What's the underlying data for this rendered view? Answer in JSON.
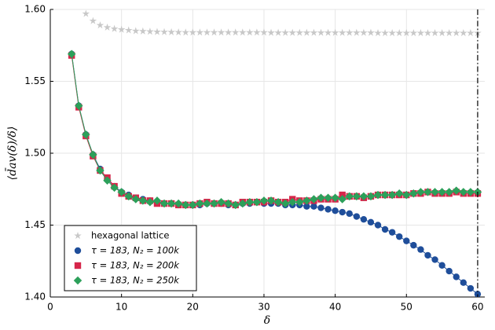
{
  "chart_data": {
    "type": "scatter",
    "xlabel": "δ",
    "ylabel": "⟨d̄av(δ)/δ⟩",
    "xlim": [
      0,
      61
    ],
    "ylim": [
      1.4,
      1.6
    ],
    "xticks": [
      0,
      10,
      20,
      30,
      40,
      50,
      60
    ],
    "yticks": [
      {
        "value": 1.4,
        "label": "1.40"
      },
      {
        "value": 1.45,
        "label": "1.45"
      },
      {
        "value": 1.5,
        "label": "1.50"
      },
      {
        "value": 1.55,
        "label": "1.55"
      },
      {
        "value": 1.6,
        "label": "1.60"
      }
    ],
    "grid": true,
    "legend": "bottom-left",
    "vline": 60,
    "x": [
      3,
      4,
      5,
      6,
      7,
      8,
      9,
      10,
      11,
      12,
      13,
      14,
      15,
      16,
      17,
      18,
      19,
      20,
      21,
      22,
      23,
      24,
      25,
      26,
      27,
      28,
      29,
      30,
      31,
      32,
      33,
      34,
      35,
      36,
      37,
      38,
      39,
      40,
      41,
      42,
      43,
      44,
      45,
      46,
      47,
      48,
      49,
      50,
      51,
      52,
      53,
      54,
      55,
      56,
      57,
      58,
      59,
      60
    ],
    "series": [
      {
        "name": "hexagonal lattice",
        "color": "#c8c8c8",
        "marker": "star",
        "line": false,
        "values": [
          null,
          null,
          1.597,
          1.592,
          1.589,
          1.5875,
          1.5865,
          1.586,
          1.5855,
          1.585,
          1.5848,
          1.5846,
          1.5844,
          1.5843,
          1.5842,
          1.5841,
          1.584,
          1.584,
          1.584,
          1.584,
          1.584,
          1.584,
          1.584,
          1.584,
          1.584,
          1.584,
          1.584,
          1.584,
          1.5838,
          1.5838,
          1.5838,
          1.5838,
          1.5838,
          1.5838,
          1.5838,
          1.5838,
          1.5838,
          1.5838,
          1.5838,
          1.5838,
          1.5838,
          1.5838,
          1.5838,
          1.5836,
          1.5836,
          1.5836,
          1.5836,
          1.5836,
          1.5836,
          1.5836,
          1.5836,
          1.5836,
          1.5836,
          1.5836,
          1.5836,
          1.5836,
          1.5836,
          1.5836
        ]
      },
      {
        "name": "τ = 183, N₂ = 100k",
        "color": "#1f4e9a",
        "marker": "circle",
        "line": true,
        "values": [
          1.569,
          1.533,
          1.513,
          1.499,
          1.489,
          1.482,
          1.477,
          1.473,
          1.471,
          1.469,
          1.468,
          1.467,
          1.466,
          1.465,
          1.465,
          1.464,
          1.464,
          1.464,
          1.464,
          1.465,
          1.465,
          1.465,
          1.464,
          1.464,
          1.465,
          1.465,
          1.466,
          1.465,
          1.465,
          1.465,
          1.464,
          1.464,
          1.464,
          1.463,
          1.463,
          1.462,
          1.461,
          1.46,
          1.459,
          1.458,
          1.456,
          1.454,
          1.452,
          1.45,
          1.447,
          1.445,
          1.442,
          1.439,
          1.436,
          1.433,
          1.429,
          1.426,
          1.422,
          1.418,
          1.414,
          1.41,
          1.406,
          1.402
        ]
      },
      {
        "name": "τ = 183, N₂ = 200k",
        "color": "#d6264a",
        "marker": "square",
        "line": true,
        "values": [
          1.568,
          1.532,
          1.512,
          1.498,
          1.488,
          1.483,
          1.477,
          1.472,
          1.47,
          1.469,
          1.467,
          1.467,
          1.465,
          1.465,
          1.465,
          1.464,
          1.464,
          1.464,
          1.465,
          1.466,
          1.465,
          1.465,
          1.465,
          1.464,
          1.466,
          1.466,
          1.466,
          1.466,
          1.467,
          1.466,
          1.466,
          1.468,
          1.467,
          1.467,
          1.467,
          1.468,
          1.468,
          1.468,
          1.471,
          1.47,
          1.47,
          1.469,
          1.47,
          1.471,
          1.471,
          1.471,
          1.471,
          1.471,
          1.472,
          1.472,
          1.473,
          1.472,
          1.472,
          1.472,
          1.473,
          1.472,
          1.472,
          1.472
        ]
      },
      {
        "name": "τ = 183, N₂ = 250k",
        "color": "#2ca05a",
        "marker": "diamond",
        "line": true,
        "values": [
          1.569,
          1.533,
          1.513,
          1.499,
          1.488,
          1.481,
          1.476,
          1.473,
          1.47,
          1.468,
          1.467,
          1.466,
          1.467,
          1.465,
          1.465,
          1.465,
          1.464,
          1.464,
          1.465,
          1.465,
          1.465,
          1.466,
          1.465,
          1.464,
          1.465,
          1.466,
          1.466,
          1.467,
          1.467,
          1.466,
          1.465,
          1.466,
          1.466,
          1.467,
          1.468,
          1.469,
          1.469,
          1.469,
          1.468,
          1.47,
          1.47,
          1.47,
          1.47,
          1.471,
          1.471,
          1.471,
          1.472,
          1.471,
          1.472,
          1.473,
          1.473,
          1.473,
          1.473,
          1.473,
          1.474,
          1.473,
          1.473,
          1.473
        ]
      }
    ]
  }
}
